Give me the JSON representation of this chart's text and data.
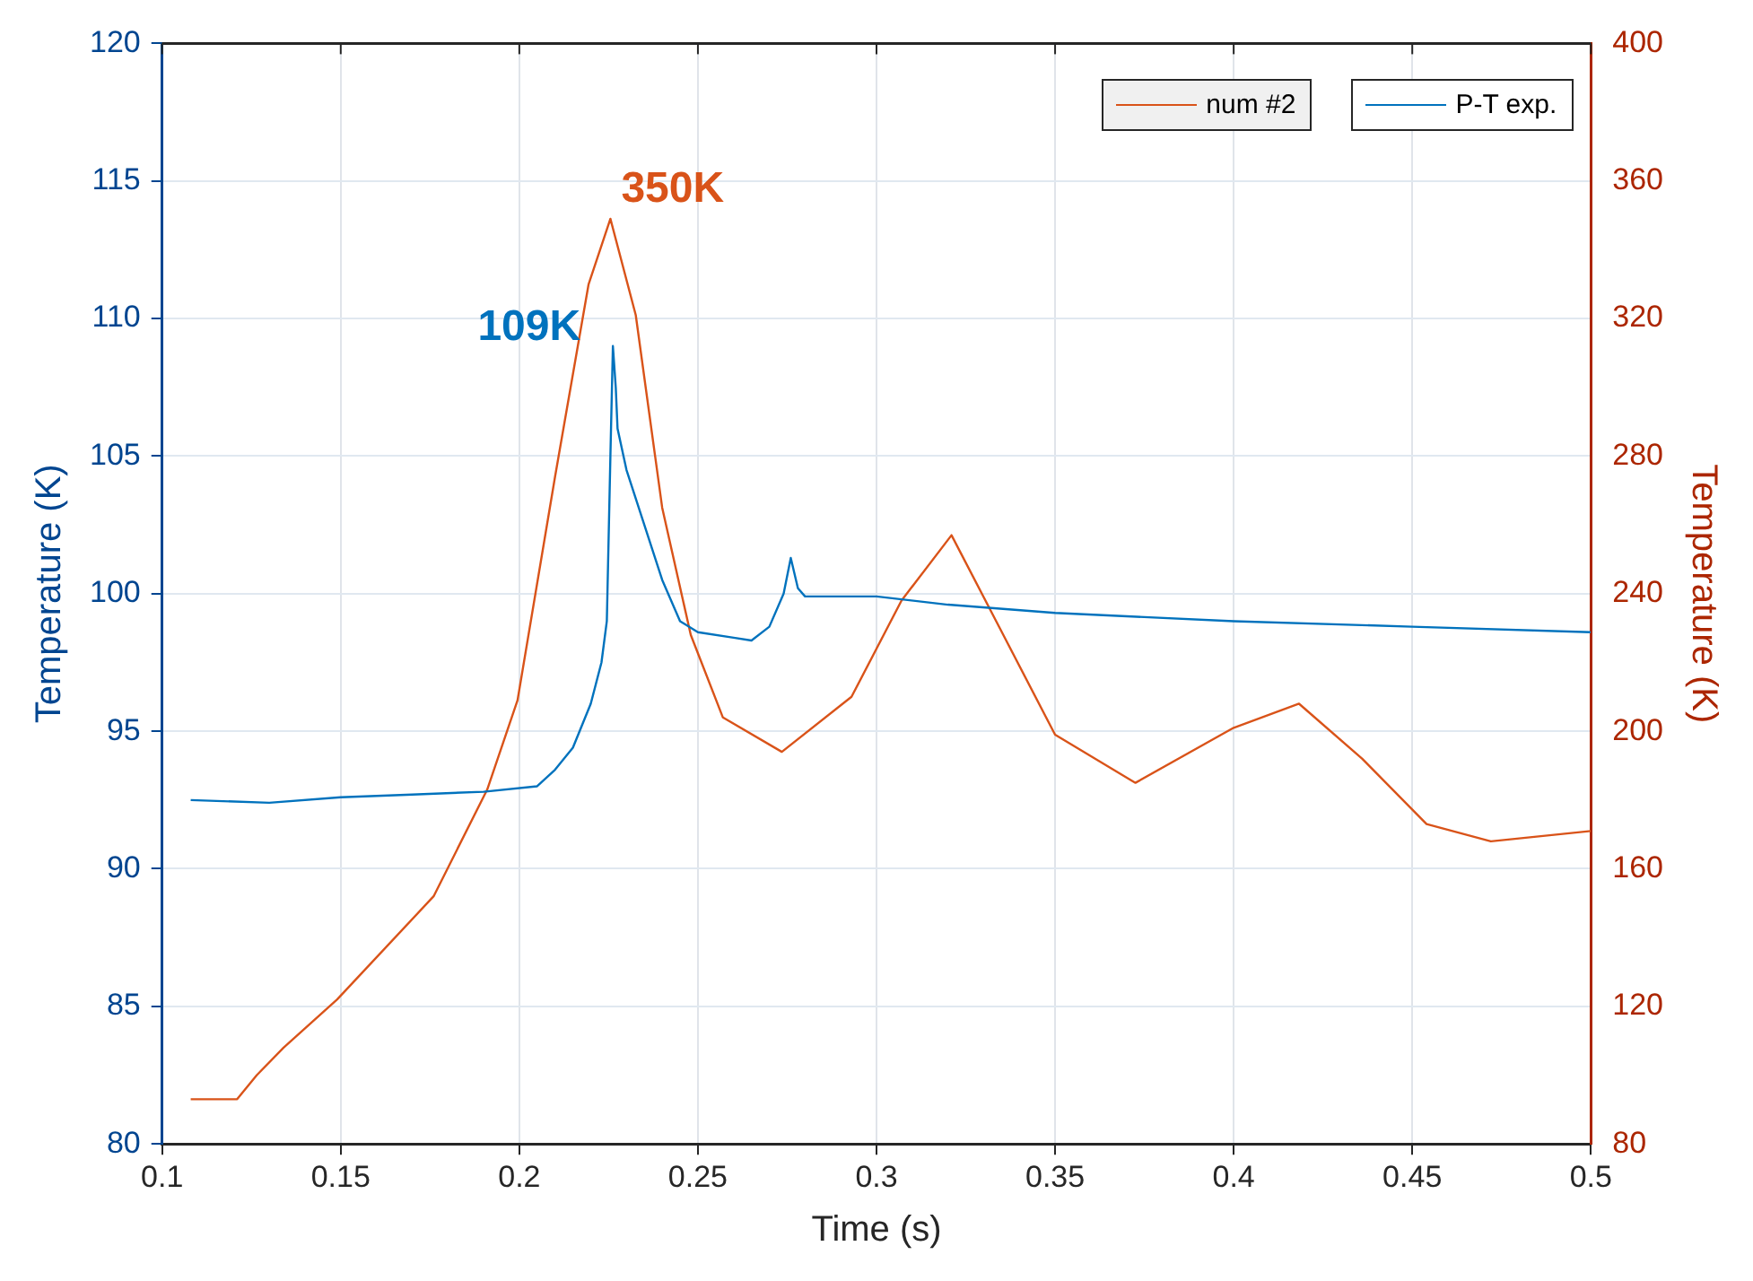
{
  "chart_data": {
    "type": "line",
    "xlabel": "Time (s)",
    "ylabel": "Temperature (K)",
    "y2label": "Temperature (K)",
    "xlim": [
      0.1,
      0.5
    ],
    "xticks": [
      0.1,
      0.15,
      0.2,
      0.25,
      0.3,
      0.35,
      0.4,
      0.45,
      0.5
    ],
    "ylim": [
      80,
      120
    ],
    "yticks": [
      80,
      85,
      90,
      95,
      100,
      105,
      110,
      115,
      120
    ],
    "y2lim": [
      80,
      400
    ],
    "y2ticks": [
      80,
      120,
      160,
      200,
      240,
      280,
      320,
      360,
      400
    ],
    "grid": true,
    "legend": "top right",
    "marker": "none",
    "line_style": "solid",
    "series": [
      {
        "name": "P-T exp.",
        "color": "#0072bd",
        "x": [
          0.108,
          0.13,
          0.15,
          0.17,
          0.19,
          0.205,
          0.21,
          0.215,
          0.22,
          0.223,
          0.2245,
          0.2255,
          0.2262,
          0.227,
          0.2275,
          0.23,
          0.235,
          0.24,
          0.245,
          0.25,
          0.26,
          0.265,
          0.27,
          0.274,
          0.276,
          0.278,
          0.28,
          0.3,
          0.32,
          0.35,
          0.4,
          0.45,
          0.5
        ],
        "values": [
          92.5,
          92.4,
          92.6,
          92.7,
          92.8,
          93.0,
          93.6,
          94.4,
          96,
          97.5,
          99,
          105,
          109,
          107.5,
          106,
          104.5,
          102.5,
          100.5,
          99,
          98.6,
          98.4,
          98.3,
          98.8,
          100,
          101.3,
          100.2,
          99.9,
          99.9,
          99.6,
          99.3,
          99.0,
          98.8,
          98.6
        ]
      },
      {
        "name": "num #2",
        "color": "#d95319",
        "axis": "y2",
        "x": [
          0.108,
          0.121,
          0.1265,
          0.134,
          0.149,
          0.176,
          0.191,
          0.1995,
          0.21,
          0.2194,
          0.2255,
          0.2326,
          0.24,
          0.248,
          0.257,
          0.2735,
          0.293,
          0.307,
          0.321,
          0.334,
          0.35,
          0.3725,
          0.4,
          0.4183,
          0.436,
          0.454,
          0.472,
          0.5
        ],
        "values": [
          93,
          93,
          100,
          108,
          122,
          152,
          183,
          209,
          274,
          330,
          349,
          321,
          265,
          228,
          204,
          194,
          210,
          238,
          257,
          231,
          199,
          185,
          201,
          208,
          192,
          173,
          168,
          171
        ]
      }
    ],
    "annotations": [
      {
        "text": "109K",
        "x": 0.2262,
        "y": 109
      },
      "350K"
    ]
  }
}
